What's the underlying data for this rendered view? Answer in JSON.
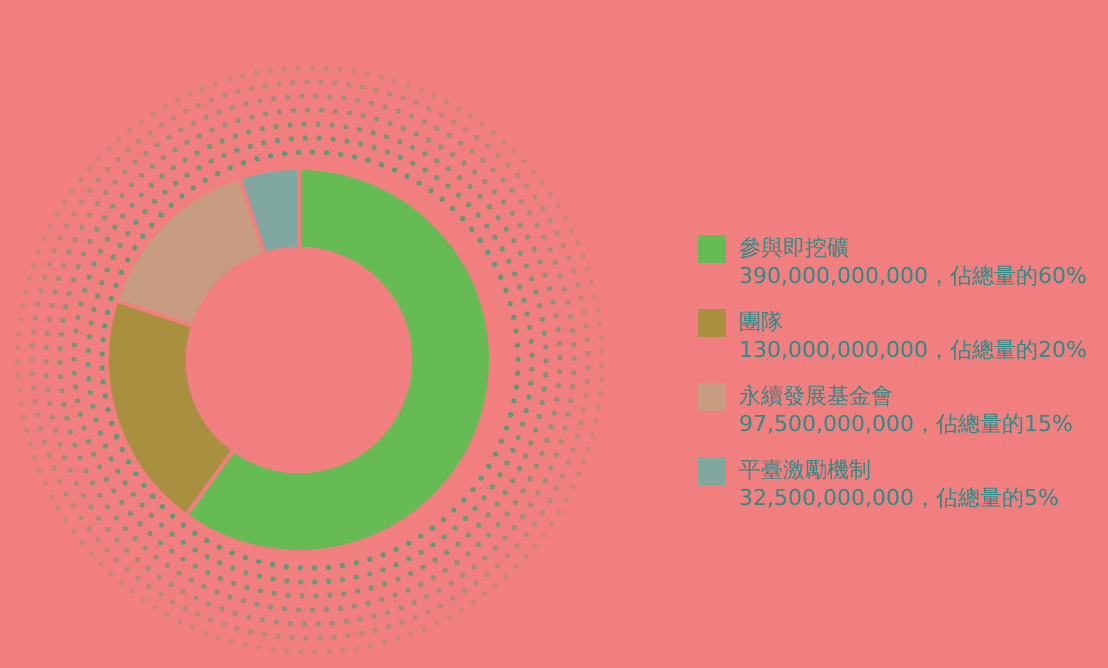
{
  "chart_data": {
    "type": "donut",
    "categories": [
      "參與即挖礦",
      "團隊",
      "永續發展基金會",
      "平臺激勵機制"
    ],
    "values": [
      390000000000,
      130000000000,
      97500000000,
      32500000000
    ],
    "value_labels": [
      "390,000,000,000，佔總量的60%",
      "130,000,000,000，佔總量的20%",
      "97,500,000,000，佔總量的15%",
      "32,500,000,000，佔總量的5%"
    ],
    "colors": [
      "#66bb55",
      "#a89040",
      "#c89c80",
      "#80a8a0"
    ],
    "legend": "right"
  }
}
